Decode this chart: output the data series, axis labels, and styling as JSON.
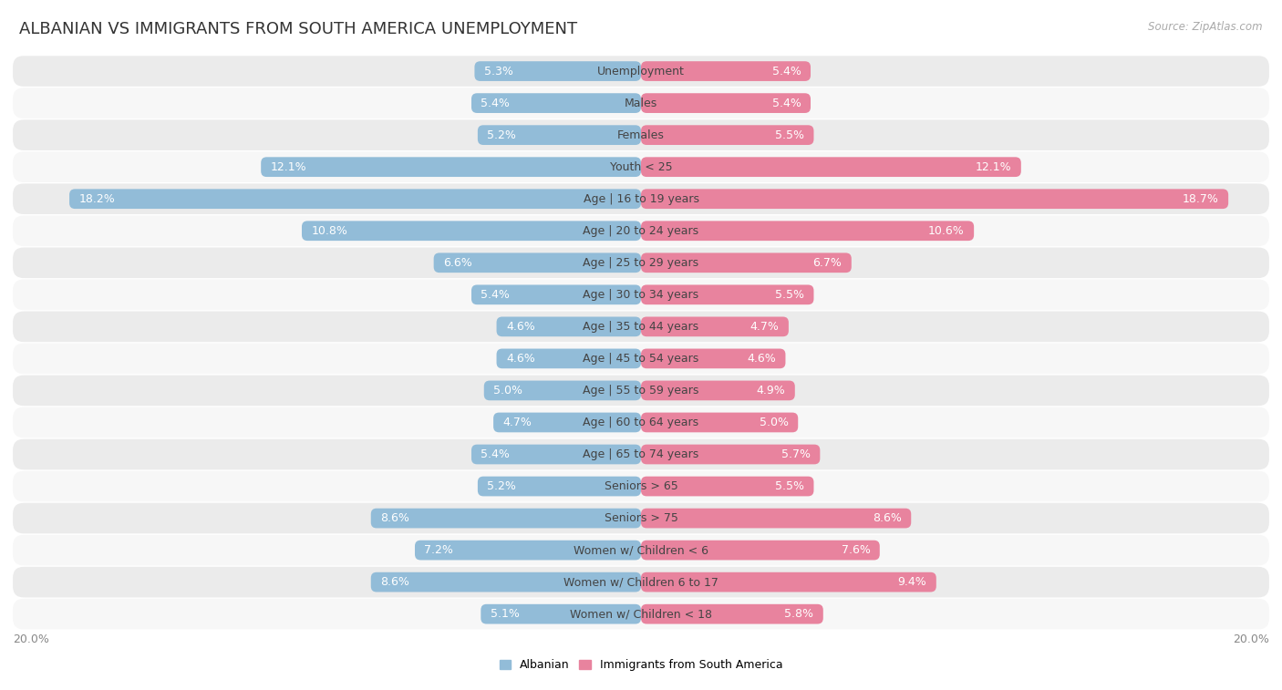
{
  "title": "ALBANIAN VS IMMIGRANTS FROM SOUTH AMERICA UNEMPLOYMENT",
  "source": "Source: ZipAtlas.com",
  "categories": [
    "Unemployment",
    "Males",
    "Females",
    "Youth < 25",
    "Age | 16 to 19 years",
    "Age | 20 to 24 years",
    "Age | 25 to 29 years",
    "Age | 30 to 34 years",
    "Age | 35 to 44 years",
    "Age | 45 to 54 years",
    "Age | 55 to 59 years",
    "Age | 60 to 64 years",
    "Age | 65 to 74 years",
    "Seniors > 65",
    "Seniors > 75",
    "Women w/ Children < 6",
    "Women w/ Children 6 to 17",
    "Women w/ Children < 18"
  ],
  "albanian": [
    5.3,
    5.4,
    5.2,
    12.1,
    18.2,
    10.8,
    6.6,
    5.4,
    4.6,
    4.6,
    5.0,
    4.7,
    5.4,
    5.2,
    8.6,
    7.2,
    8.6,
    5.1
  ],
  "immigrants": [
    5.4,
    5.4,
    5.5,
    12.1,
    18.7,
    10.6,
    6.7,
    5.5,
    4.7,
    4.6,
    4.9,
    5.0,
    5.7,
    5.5,
    8.6,
    7.6,
    9.4,
    5.8
  ],
  "albanian_color": "#92bcd8",
  "immigrants_color": "#e8839e",
  "row_bg_odd": "#ebebeb",
  "row_bg_even": "#f7f7f7",
  "xlim": 20.0,
  "bar_height": 0.62,
  "label_fontsize": 9,
  "category_fontsize": 9,
  "title_fontsize": 13,
  "legend_fontsize": 9,
  "axis_label_fontsize": 9,
  "value_label_color_inside": "#ffffff",
  "value_label_color_outside": "#555555"
}
